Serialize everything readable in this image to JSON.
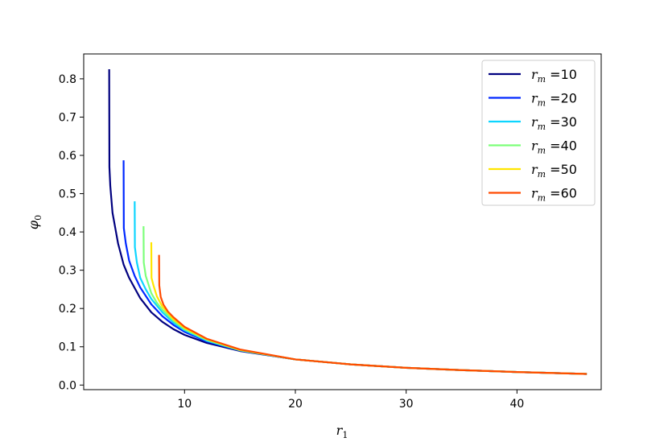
{
  "chart_data": {
    "type": "line",
    "title": "",
    "xlabel": "r",
    "xlabel_sub": "1",
    "ylabel": "φ",
    "ylabel_sub": "0",
    "xlim": [
      0.9,
      47.6
    ],
    "ylim": [
      -0.012,
      0.865
    ],
    "xticks": [
      10,
      20,
      30,
      40
    ],
    "yticks": [
      0.0,
      0.1,
      0.2,
      0.3,
      0.4,
      0.5,
      0.6,
      0.7,
      0.8
    ],
    "ytick_labels": [
      "0.0",
      "0.1",
      "0.2",
      "0.3",
      "0.4",
      "0.5",
      "0.6",
      "0.7",
      "0.8"
    ],
    "grid": false,
    "legend_position": "top-right",
    "series": [
      {
        "label_var": "r",
        "label_sub": "m",
        "label_value": " =10",
        "color": "#00007f",
        "points": [
          [
            3.2,
            0.825
          ],
          [
            3.22,
            0.57
          ],
          [
            3.3,
            0.52
          ],
          [
            3.5,
            0.45
          ],
          [
            4.0,
            0.37
          ],
          [
            4.5,
            0.315
          ],
          [
            5,
            0.28
          ],
          [
            6,
            0.227
          ],
          [
            7,
            0.19
          ],
          [
            8,
            0.165
          ],
          [
            9,
            0.146
          ],
          [
            10,
            0.131
          ],
          [
            12,
            0.11
          ],
          [
            15,
            0.089
          ],
          [
            20,
            0.067
          ],
          [
            25,
            0.054
          ],
          [
            30,
            0.045
          ],
          [
            35,
            0.039
          ],
          [
            40,
            0.034
          ],
          [
            46.3,
            0.029
          ]
        ]
      },
      {
        "label_var": "r",
        "label_sub": "m",
        "label_value": " =20",
        "color": "#0028ff",
        "points": [
          [
            4.5,
            0.587
          ],
          [
            4.52,
            0.41
          ],
          [
            4.7,
            0.37
          ],
          [
            5,
            0.325
          ],
          [
            5.5,
            0.285
          ],
          [
            6,
            0.255
          ],
          [
            7,
            0.211
          ],
          [
            8,
            0.18
          ],
          [
            9,
            0.157
          ],
          [
            10,
            0.139
          ],
          [
            12,
            0.114
          ],
          [
            15,
            0.09
          ],
          [
            20,
            0.067
          ],
          [
            25,
            0.054
          ],
          [
            30,
            0.045
          ],
          [
            35,
            0.039
          ],
          [
            40,
            0.034
          ],
          [
            46.3,
            0.029
          ]
        ]
      },
      {
        "label_var": "r",
        "label_sub": "m",
        "label_value": " =30",
        "color": "#0dd5ff",
        "points": [
          [
            5.5,
            0.48
          ],
          [
            5.52,
            0.36
          ],
          [
            5.7,
            0.32
          ],
          [
            6,
            0.28
          ],
          [
            6.5,
            0.25
          ],
          [
            7,
            0.225
          ],
          [
            8,
            0.19
          ],
          [
            9,
            0.163
          ],
          [
            10,
            0.143
          ],
          [
            12,
            0.116
          ],
          [
            15,
            0.091
          ],
          [
            20,
            0.067
          ],
          [
            25,
            0.054
          ],
          [
            30,
            0.045
          ],
          [
            35,
            0.039
          ],
          [
            40,
            0.034
          ],
          [
            46.3,
            0.029
          ]
        ]
      },
      {
        "label_var": "r",
        "label_sub": "m",
        "label_value": " =40",
        "color": "#7dff7a",
        "points": [
          [
            6.3,
            0.415
          ],
          [
            6.32,
            0.32
          ],
          [
            6.5,
            0.285
          ],
          [
            7,
            0.24
          ],
          [
            7.5,
            0.215
          ],
          [
            8,
            0.197
          ],
          [
            9,
            0.168
          ],
          [
            10,
            0.146
          ],
          [
            12,
            0.118
          ],
          [
            15,
            0.091
          ],
          [
            20,
            0.067
          ],
          [
            25,
            0.054
          ],
          [
            30,
            0.045
          ],
          [
            35,
            0.039
          ],
          [
            40,
            0.034
          ],
          [
            46.3,
            0.029
          ]
        ]
      },
      {
        "label_var": "r",
        "label_sub": "m",
        "label_value": " =50",
        "color": "#ffe500",
        "points": [
          [
            7.0,
            0.373
          ],
          [
            7.02,
            0.28
          ],
          [
            7.2,
            0.26
          ],
          [
            7.5,
            0.232
          ],
          [
            8,
            0.205
          ],
          [
            9,
            0.172
          ],
          [
            10,
            0.149
          ],
          [
            12,
            0.12
          ],
          [
            15,
            0.092
          ],
          [
            20,
            0.067
          ],
          [
            25,
            0.054
          ],
          [
            30,
            0.045
          ],
          [
            35,
            0.039
          ],
          [
            40,
            0.034
          ],
          [
            46.3,
            0.029
          ]
        ]
      },
      {
        "label_var": "r",
        "label_sub": "m",
        "label_value": " =60",
        "color": "#ff4a00",
        "points": [
          [
            7.7,
            0.34
          ],
          [
            7.72,
            0.26
          ],
          [
            7.85,
            0.23
          ],
          [
            8.1,
            0.21
          ],
          [
            8.5,
            0.192
          ],
          [
            9,
            0.177
          ],
          [
            10,
            0.152
          ],
          [
            12,
            0.121
          ],
          [
            15,
            0.093
          ],
          [
            20,
            0.067
          ],
          [
            25,
            0.054
          ],
          [
            30,
            0.045
          ],
          [
            35,
            0.039
          ],
          [
            40,
            0.034
          ],
          [
            46.3,
            0.029
          ]
        ]
      }
    ]
  }
}
